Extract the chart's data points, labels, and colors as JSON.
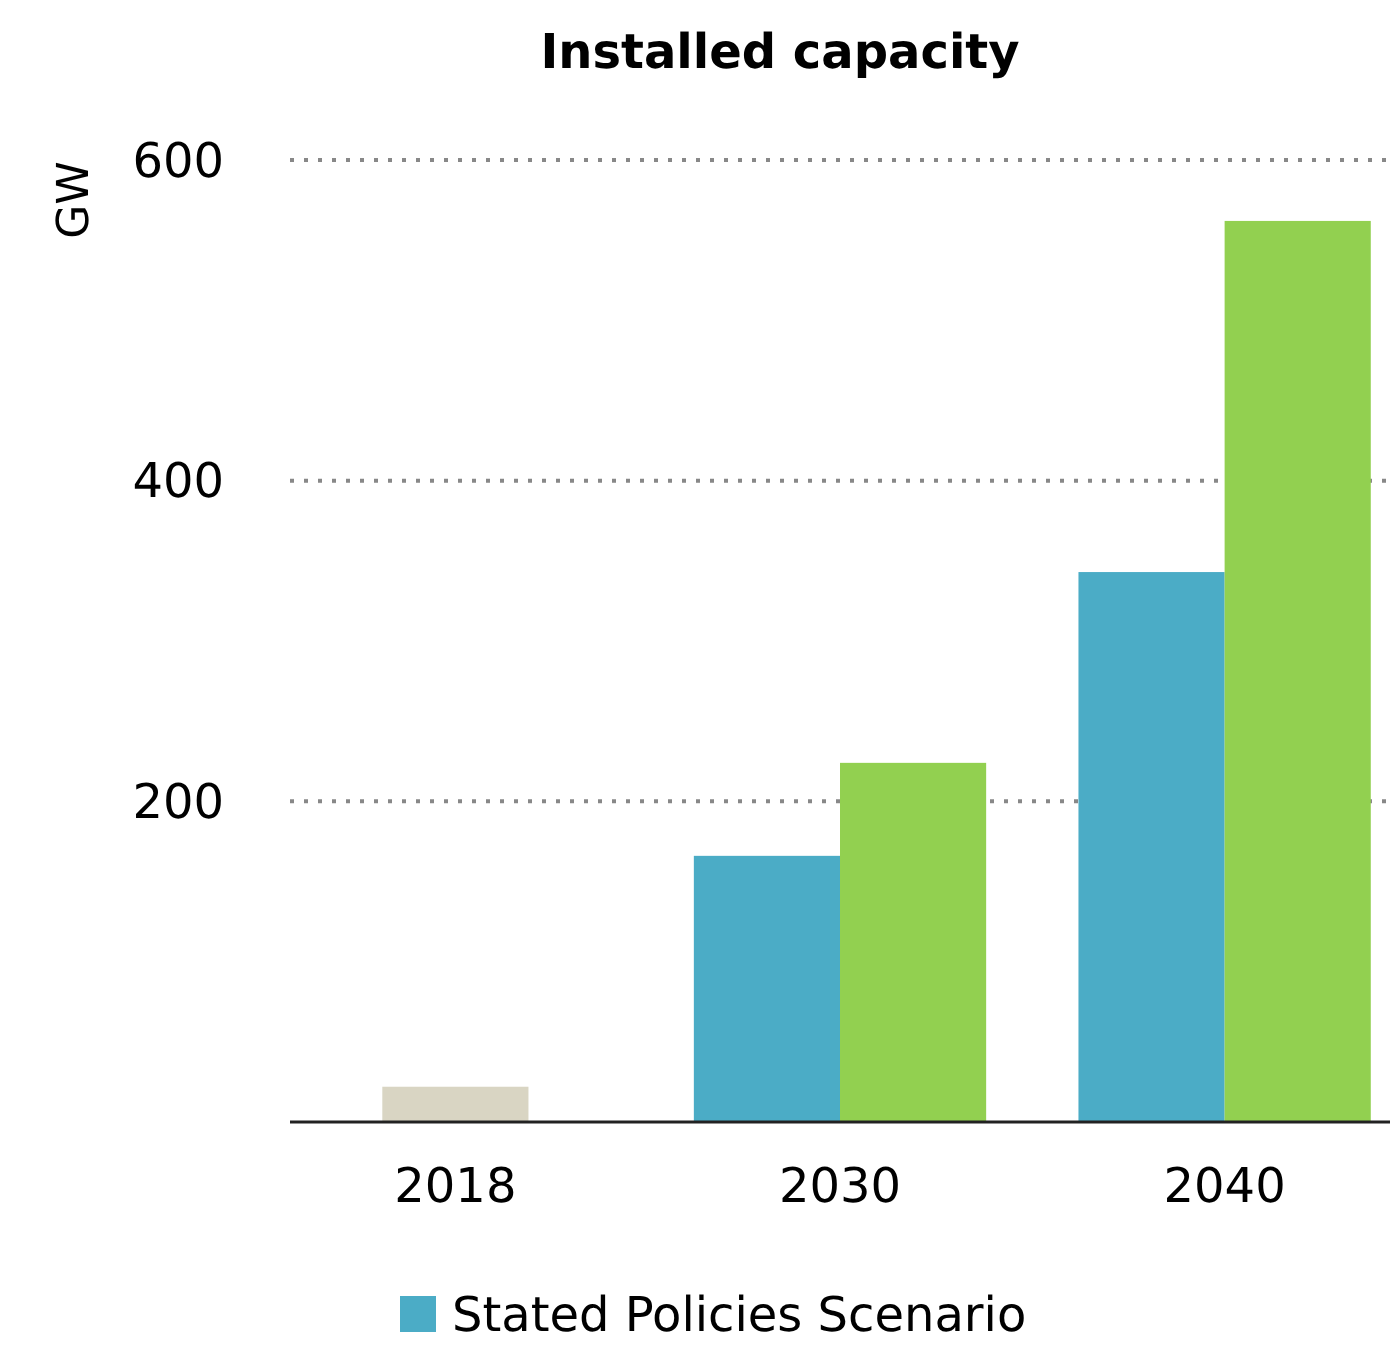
{
  "chart_data": {
    "type": "bar",
    "title": "Installed capacity",
    "ylabel": "GW",
    "categories": [
      "2018",
      "2030",
      "2040"
    ],
    "series": [
      {
        "color": "#d9d5c3",
        "values": [
          22,
          null,
          null
        ]
      },
      {
        "name": "Stated Policies Scenario",
        "color": "#4bacc6",
        "values": [
          null,
          166,
          343
        ]
      },
      {
        "color": "#92d050",
        "values": [
          null,
          224,
          562
        ]
      }
    ],
    "ylim": [
      0,
      600
    ],
    "yticks": [
      200,
      400,
      600
    ],
    "grid": "y",
    "legend": "bottom"
  }
}
